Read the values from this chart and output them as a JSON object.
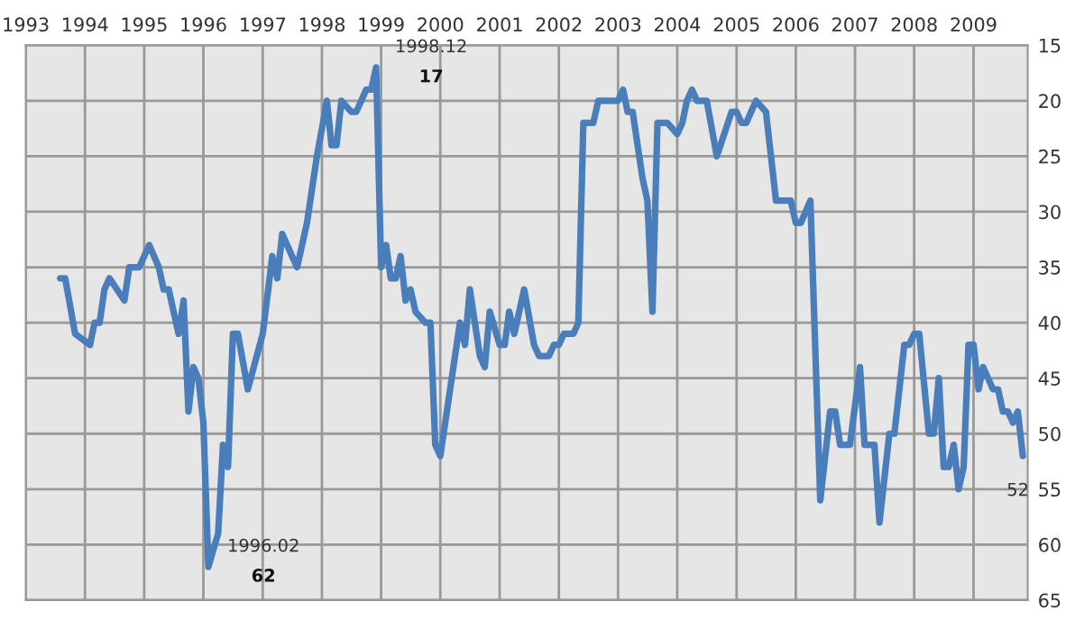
{
  "chart_data": {
    "type": "line",
    "x": [
      "1993-08",
      "1993-09",
      "1993-11",
      "1994-02",
      "1994-03",
      "1994-04",
      "1994-05",
      "1994-06",
      "1994-09",
      "1994-10",
      "1994-12",
      "1995-02",
      "1995-04",
      "1995-05",
      "1995-06",
      "1995-08",
      "1995-09",
      "1995-10",
      "1995-11",
      "1995-12",
      "1996-01",
      "1996-02",
      "1996-04",
      "1996-05",
      "1996-06",
      "1996-07",
      "1996-08",
      "1996-10",
      "1997-01",
      "1997-03",
      "1997-04",
      "1997-05",
      "1997-07",
      "1997-08",
      "1997-10",
      "1997-12",
      "1998-02",
      "1998-03",
      "1998-04",
      "1998-05",
      "1998-07",
      "1998-08",
      "1998-10",
      "1998-11",
      "1998-12",
      "1999-01",
      "1999-02",
      "1999-03",
      "1999-04",
      "1999-05",
      "1999-06",
      "1999-07",
      "1999-08",
      "1999-10",
      "1999-11",
      "1999-12",
      "2000-01",
      "2000-05",
      "2000-06",
      "2000-07",
      "2000-09",
      "2000-10",
      "2000-11",
      "2001-01",
      "2001-02",
      "2001-03",
      "2001-04",
      "2001-06",
      "2001-08",
      "2001-09",
      "2001-11",
      "2001-12",
      "2002-01",
      "2002-02",
      "2002-04",
      "2002-05",
      "2002-06",
      "2002-08",
      "2002-09",
      "2002-12",
      "2003-01",
      "2003-02",
      "2003-03",
      "2003-04",
      "2003-06",
      "2003-07",
      "2003-08",
      "2003-09",
      "2003-11",
      "2004-01",
      "2004-02",
      "2004-03",
      "2004-04",
      "2004-05",
      "2004-07",
      "2004-09",
      "2004-12",
      "2005-01",
      "2005-02",
      "2005-03",
      "2005-05",
      "2005-07",
      "2005-09",
      "2005-12",
      "2006-01",
      "2006-02",
      "2006-04",
      "2006-06",
      "2006-08",
      "2006-09",
      "2006-10",
      "2006-12",
      "2007-02",
      "2007-03",
      "2007-05",
      "2007-06",
      "2007-08",
      "2007-09",
      "2007-11",
      "2007-12",
      "2008-01",
      "2008-02",
      "2008-04",
      "2008-05",
      "2008-06",
      "2008-07",
      "2008-08",
      "2008-09",
      "2008-10",
      "2008-11",
      "2008-12",
      "2009-01",
      "2009-02",
      "2009-03",
      "2009-05",
      "2009-06",
      "2009-07",
      "2009-08",
      "2009-09",
      "2009-10",
      "2009-11"
    ],
    "series": [
      {
        "color": "#4a7ebb",
        "values": [
          36,
          36,
          41,
          42,
          40,
          40,
          37,
          36,
          38,
          35,
          35,
          33,
          35,
          37,
          37,
          41,
          38,
          48,
          44,
          45,
          49,
          62,
          59,
          51,
          53,
          41,
          41,
          46,
          41,
          34,
          36,
          32,
          34,
          35,
          31,
          25,
          20,
          24,
          24,
          20,
          21,
          21,
          19,
          19,
          17,
          35,
          33,
          36,
          36,
          34,
          38,
          37,
          39,
          40,
          40,
          51,
          52,
          40,
          42,
          37,
          43,
          44,
          39,
          42,
          42,
          39,
          41,
          37,
          42,
          43,
          43,
          42,
          42,
          41,
          41,
          40,
          22,
          22,
          20,
          20,
          20,
          19,
          21,
          21,
          27,
          29,
          39,
          22,
          22,
          23,
          22,
          20,
          19,
          20,
          20,
          25,
          21,
          21,
          22,
          22,
          20,
          21,
          29,
          29,
          31,
          31,
          29,
          56,
          48,
          48,
          51,
          51,
          44,
          51,
          51,
          58,
          50,
          50,
          42,
          42,
          41,
          41,
          50,
          50,
          45,
          53,
          53,
          51,
          55,
          53,
          42,
          42,
          46,
          44,
          46,
          46,
          48,
          48,
          49,
          48,
          52
        ]
      }
    ],
    "xlim": [
      "1993",
      "2009-12"
    ],
    "xticks": [
      "1993",
      "1994",
      "1995",
      "1996",
      "1997",
      "1998",
      "1999",
      "2000",
      "2001",
      "2002",
      "2003",
      "2004",
      "2005",
      "2006",
      "2007",
      "2008",
      "2009"
    ],
    "ylim": [
      65,
      15
    ],
    "yticks": [
      15,
      20,
      25,
      30,
      35,
      40,
      45,
      50,
      55,
      60,
      65
    ],
    "grid": true,
    "legend": false,
    "marker": "none",
    "line_style": "solid",
    "annotations": [
      {
        "text": "1998.12\n17",
        "x": "1998-12",
        "y": 17
      },
      {
        "text": "1996.02\n62",
        "x": "1996-02",
        "y": 62
      },
      {
        "text": "52",
        "x": "2009-11",
        "y": 52
      }
    ]
  }
}
